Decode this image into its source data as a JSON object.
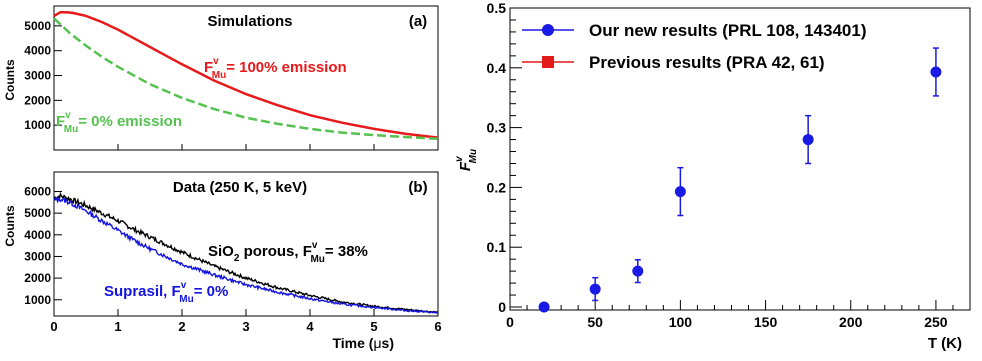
{
  "chart_data": [
    {
      "type": "line",
      "panel": "(a)",
      "title": "Simulations",
      "ylabel": "Counts",
      "xlim": [
        0,
        6
      ],
      "ylim": [
        0,
        5800
      ],
      "yticks": [
        1000,
        2000,
        3000,
        4000,
        5000
      ],
      "series": [
        {
          "name_main": "F",
          "name_sup": "v",
          "name_sub": "Mu",
          "name_tail": "= 100% emission",
          "color": "#e8191b",
          "style": "solid",
          "x": [
            0,
            0.1,
            0.2,
            0.3,
            0.5,
            0.75,
            1,
            1.25,
            1.5,
            1.75,
            2,
            2.5,
            3,
            3.5,
            4,
            4.5,
            5,
            5.5,
            6
          ],
          "y": [
            5400,
            5550,
            5550,
            5520,
            5400,
            5150,
            4850,
            4500,
            4150,
            3800,
            3450,
            2800,
            2250,
            1800,
            1400,
            1100,
            850,
            650,
            500
          ]
        },
        {
          "name_main": "F",
          "name_sup": "v",
          "name_sub": "Mu",
          "name_tail": "= 0% emission",
          "color": "#55c24f",
          "style": "dashed",
          "x": [
            0,
            0.25,
            0.5,
            0.75,
            1,
            1.5,
            2,
            2.5,
            3,
            3.5,
            4,
            4.5,
            5,
            5.5,
            6
          ],
          "y": [
            5300,
            4700,
            4200,
            3750,
            3350,
            2650,
            2100,
            1650,
            1300,
            1050,
            850,
            700,
            600,
            520,
            450
          ]
        }
      ]
    },
    {
      "type": "line",
      "panel": "(b)",
      "title": "Data (250 K, 5 keV)",
      "ylabel": "Counts",
      "xlabel_pre": "Time (",
      "xlabel_mu": "μ",
      "xlabel_post": "s)",
      "xlim": [
        0,
        6
      ],
      "ylim": [
        250,
        6900
      ],
      "xticks": [
        0,
        1,
        2,
        3,
        4,
        5,
        6
      ],
      "yticks": [
        1000,
        2000,
        3000,
        4000,
        5000,
        6000
      ],
      "series": [
        {
          "name_main": "SiO",
          "name_main_sub": "2",
          "name_mid": " porous, F",
          "name_sup": "v",
          "name_sub": "Mu",
          "name_tail": "= 38%",
          "color": "#000000",
          "x": [
            0,
            0.1,
            0.25,
            0.5,
            0.75,
            1,
            1.25,
            1.5,
            1.75,
            2,
            2.5,
            3,
            3.5,
            4,
            4.5,
            5,
            5.5,
            6
          ],
          "y": [
            5700,
            5800,
            5650,
            5350,
            5000,
            4650,
            4250,
            3900,
            3550,
            3200,
            2550,
            2000,
            1550,
            1200,
            900,
            700,
            550,
            420
          ]
        },
        {
          "name_main": "Suprasil, F",
          "name_sup": "v",
          "name_sub": "Mu",
          "name_tail": "= 0%",
          "color": "#1414e0",
          "x": [
            0,
            0.1,
            0.25,
            0.5,
            0.75,
            1,
            1.25,
            1.5,
            1.75,
            2,
            2.5,
            3,
            3.5,
            4,
            4.5,
            5,
            5.5,
            6
          ],
          "y": [
            5600,
            5650,
            5500,
            5100,
            4650,
            4200,
            3750,
            3350,
            3000,
            2650,
            2150,
            1700,
            1350,
            1050,
            800,
            650,
            500,
            400
          ]
        }
      ]
    },
    {
      "type": "scatter",
      "xlabel": "T (K)",
      "ylabel_main": "F",
      "ylabel_sup": "v",
      "ylabel_sub": "Mu",
      "xlim": [
        0,
        270
      ],
      "ylim": [
        -0.005,
        0.5
      ],
      "xticks": [
        0,
        50,
        100,
        150,
        200,
        250
      ],
      "yticks": [
        0,
        0.1,
        0.2,
        0.3,
        0.4,
        0.5
      ],
      "ytick_labels": [
        "0",
        "0.1",
        "0.2",
        "0.3",
        "0.4",
        "0.5"
      ],
      "legend": "top-left",
      "series": [
        {
          "name": "Our new results (PRL 108, 143401)",
          "marker": "circle",
          "color": "#1a1ae6",
          "x": [
            20,
            50,
            75,
            100,
            175,
            250
          ],
          "y": [
            0.0,
            0.03,
            0.06,
            0.193,
            0.28,
            0.393
          ],
          "err": [
            0.0,
            0.019,
            0.019,
            0.04,
            0.04,
            0.04
          ]
        },
        {
          "name": "Previous results (PRA 42, 61)",
          "marker": "square",
          "color": "#e31a1a",
          "x": [],
          "y": []
        }
      ]
    }
  ]
}
